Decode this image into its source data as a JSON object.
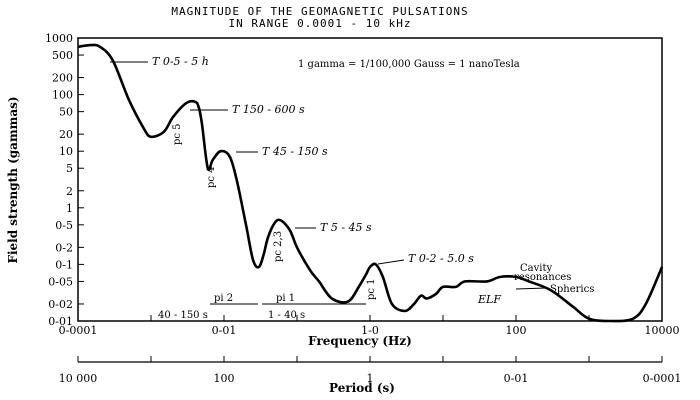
{
  "chart_data": {
    "type": "line",
    "title": "MAGNITUDE OF THE GEOMAGNETIC PULSATIONS",
    "subtitle": "IN RANGE 0.0001 - 10 kHz",
    "xlabel": "Frequency (Hz)",
    "ylabel": "Field strength (gammas)",
    "x_scale": "log",
    "y_scale": "log",
    "xlim": [
      0.0001,
      10000
    ],
    "ylim": [
      0.01,
      1000
    ],
    "x_ticks": [
      "0-0001",
      "0-01",
      "1-0",
      "100",
      "10000"
    ],
    "y_ticks": [
      "1000",
      "500",
      "200",
      "100",
      "50",
      "20",
      "10",
      "5",
      "2",
      "1",
      "0-5",
      "0-2",
      "0-1",
      "0-05",
      "0-02",
      "0-01"
    ],
    "secondary_x_axis": {
      "label": "Period (s)",
      "ticks": [
        "10 000",
        "100",
        "1",
        "0-01",
        "0-0001"
      ]
    },
    "series": [
      {
        "x": [
          0.0001,
          0.00015,
          0.0002,
          0.0003,
          0.0005,
          0.0008,
          0.001,
          0.0015,
          0.002,
          0.003,
          0.004,
          0.0045,
          0.005,
          0.006,
          0.007,
          0.009,
          0.012,
          0.015,
          0.02,
          0.025,
          0.03,
          0.035,
          0.04,
          0.05,
          0.06,
          0.08,
          0.1,
          0.15,
          0.2,
          0.3,
          0.5,
          0.7,
          0.9,
          1.0,
          1.2,
          1.5,
          2,
          3,
          4,
          5,
          6,
          8,
          10,
          15,
          20,
          40,
          60,
          100,
          150,
          300,
          600,
          1000,
          2000,
          4000,
          6000,
          10000
        ],
        "y": [
          700,
          750,
          700,
          400,
          80,
          25,
          18,
          22,
          40,
          70,
          75,
          60,
          30,
          5,
          7,
          10,
          8,
          3,
          0.5,
          0.12,
          0.09,
          0.15,
          0.3,
          0.55,
          0.6,
          0.4,
          0.2,
          0.08,
          0.05,
          0.025,
          0.022,
          0.04,
          0.07,
          0.09,
          0.1,
          0.06,
          0.02,
          0.015,
          0.02,
          0.028,
          0.025,
          0.03,
          0.04,
          0.04,
          0.05,
          0.05,
          0.06,
          0.06,
          0.05,
          0.035,
          0.018,
          0.011,
          0.01,
          0.011,
          0.02,
          0.09
        ]
      }
    ],
    "annotations": {
      "t1": "T 0-5 - 5 h",
      "t2": "T 150 - 600 s",
      "t3": "T 45 - 150 s",
      "t4": "T 5 - 45 s",
      "t5": "T 0-2 - 5.0 s",
      "units": "1 gamma = 1/100,000 Gauss = 1 nanoTesla",
      "pc5": "pc 5",
      "pc4": "pc 4",
      "pc23": "pc 2,3",
      "pc1": "pc 1",
      "pi2": "pi 2",
      "pi1": "pi 1",
      "pi2_range": "40 - 150 s",
      "pi1_range": "1 - 40 s",
      "cavity1": "Cavity",
      "cavity2": "resonances",
      "elf": "ELF",
      "spherics": "Spherics"
    },
    "grid": false,
    "legend": "none"
  }
}
